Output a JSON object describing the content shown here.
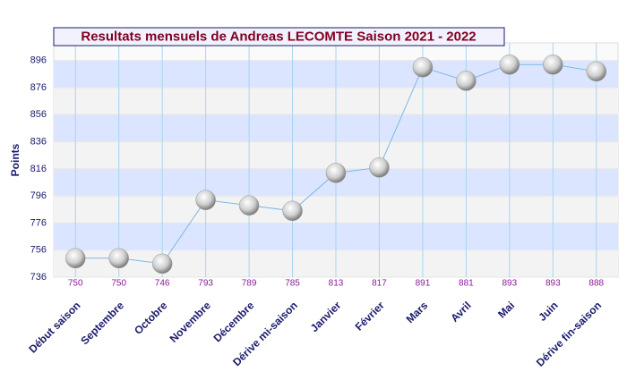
{
  "chart_data": {
    "type": "line",
    "title": "Resultats mensuels de Andreas LECOMTE Saison 2021 - 2022",
    "y_label": "Points",
    "categories": [
      "Début saison",
      "Septembre",
      "Octobre",
      "Novembre",
      "Décembre",
      "Dérive mi-saison",
      "Janvier",
      "Février",
      "Mars",
      "Avril",
      "Mai",
      "Juin",
      "Dérive fin-saison"
    ],
    "values": [
      750,
      750,
      746,
      793,
      789,
      785,
      813,
      817,
      891,
      881,
      893,
      893,
      888
    ],
    "color": "#7ab8e8",
    "ylim": [
      736,
      909
    ],
    "yticks": [
      736,
      756,
      776,
      796,
      816,
      836,
      856,
      876,
      896
    ],
    "grid": true
  }
}
